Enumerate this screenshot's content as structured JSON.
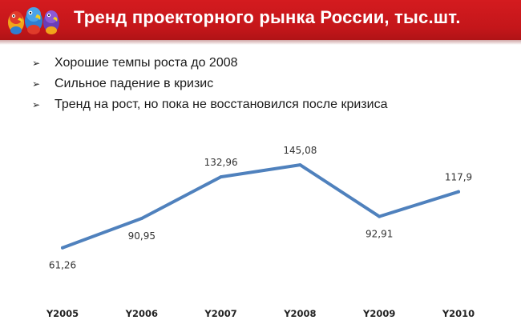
{
  "header": {
    "title": "Тренд проекторного рынка России, тыс.шт.",
    "bg_color": "#c4161a",
    "logo_icon": "parrots-logo-icon"
  },
  "bullets": [
    {
      "icon": "arrow-bullet-icon",
      "text": "Хорошие темпы роста до 2008"
    },
    {
      "icon": "arrow-bullet-icon",
      "text": "Сильное падение в кризис"
    },
    {
      "icon": "arrow-bullet-icon",
      "text": "Тренд на рост, но пока не восстановился после кризиса"
    }
  ],
  "chart_data": {
    "type": "line",
    "categories": [
      "Y2005",
      "Y2006",
      "Y2007",
      "Y2008",
      "Y2009",
      "Y2010"
    ],
    "series": [
      {
        "values": [
          61.26,
          90.95,
          132.96,
          145.08,
          92.91,
          117.9
        ],
        "color": "#4f81bd"
      }
    ],
    "data_labels": [
      "61,26",
      "90,95",
      "132,96",
      "145,08",
      "92,91",
      "117,9"
    ],
    "ylim": [
      40,
      150
    ],
    "grid": false,
    "legend": "none"
  }
}
